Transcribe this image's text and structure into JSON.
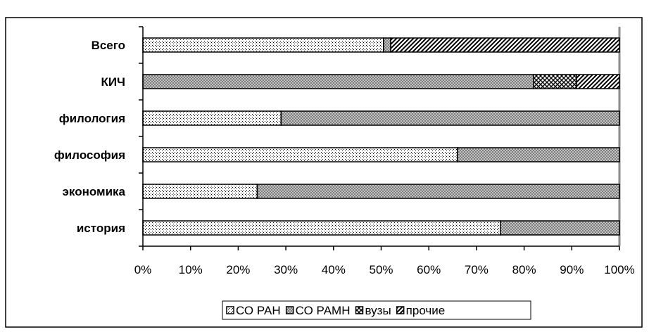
{
  "chart_data": {
    "type": "bar",
    "orientation": "horizontal",
    "stacked": "percent",
    "title": "",
    "xlabel": "",
    "ylabel": "",
    "categories": [
      "Всего",
      "КИЧ",
      "филология",
      "философия",
      "экономика",
      "история"
    ],
    "xlim": [
      0,
      100
    ],
    "x_ticks": [
      "0%",
      "10%",
      "20%",
      "30%",
      "40%",
      "50%",
      "60%",
      "70%",
      "80%",
      "90%",
      "100%"
    ],
    "series": [
      {
        "name": "СО РАН",
        "values": [
          50.5,
          0,
          29,
          66,
          24,
          75
        ],
        "pattern": "dots"
      },
      {
        "name": "СО РАМН",
        "values": [
          1.5,
          82,
          71,
          34,
          76,
          25
        ],
        "pattern": "crosshatch"
      },
      {
        "name": "вузы",
        "values": [
          0,
          9,
          0,
          0,
          0,
          0
        ],
        "pattern": "checker"
      },
      {
        "name": "прочие",
        "values": [
          48,
          9,
          0,
          0,
          0,
          0
        ],
        "pattern": "diagonal"
      }
    ],
    "grid": false,
    "legend_position": "bottom"
  }
}
